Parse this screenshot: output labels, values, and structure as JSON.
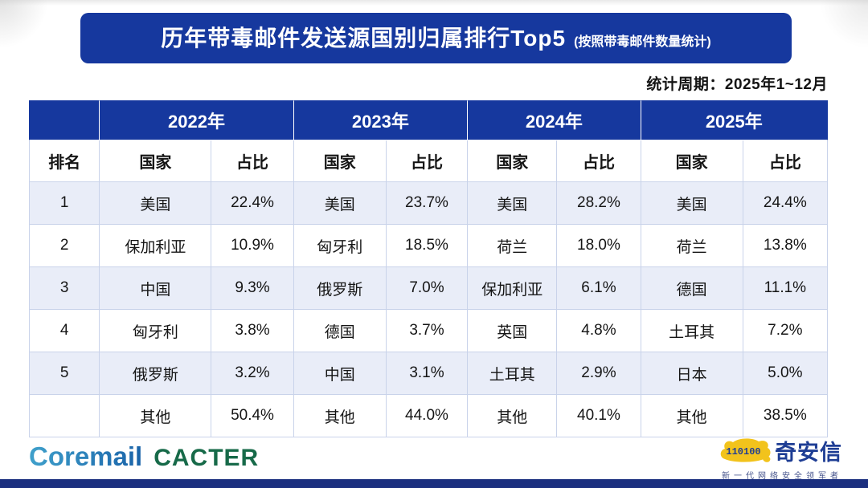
{
  "banner": {
    "title": "历年带毒邮件发送源国别归属排行Top5",
    "subtitle": "(按照带毒邮件数量统计)"
  },
  "period": "统计周期：2025年1~12月",
  "chart_data": {
    "type": "table",
    "title": "历年带毒邮件发送源国别归属排行Top5",
    "subtitle": "(按照带毒邮件数量统计)",
    "period": "统计周期：2025年1~12月",
    "rank_label": "排名",
    "country_label": "国家",
    "share_label": "占比",
    "years": [
      "2022年",
      "2023年",
      "2024年",
      "2025年"
    ],
    "rows": [
      {
        "rank": "1",
        "entries": [
          {
            "country": "美国",
            "share": "22.4%"
          },
          {
            "country": "美国",
            "share": "23.7%"
          },
          {
            "country": "美国",
            "share": "28.2%"
          },
          {
            "country": "美国",
            "share": "24.4%"
          }
        ]
      },
      {
        "rank": "2",
        "entries": [
          {
            "country": "保加利亚",
            "share": "10.9%"
          },
          {
            "country": "匈牙利",
            "share": "18.5%"
          },
          {
            "country": "荷兰",
            "share": "18.0%"
          },
          {
            "country": "荷兰",
            "share": "13.8%"
          }
        ]
      },
      {
        "rank": "3",
        "entries": [
          {
            "country": "中国",
            "share": "9.3%"
          },
          {
            "country": "俄罗斯",
            "share": "7.0%"
          },
          {
            "country": "保加利亚",
            "share": "6.1%"
          },
          {
            "country": "德国",
            "share": "11.1%"
          }
        ]
      },
      {
        "rank": "4",
        "entries": [
          {
            "country": "匈牙利",
            "share": "3.8%"
          },
          {
            "country": "德国",
            "share": "3.7%"
          },
          {
            "country": "英国",
            "share": "4.8%"
          },
          {
            "country": "土耳其",
            "share": "7.2%"
          }
        ]
      },
      {
        "rank": "5",
        "entries": [
          {
            "country": "俄罗斯",
            "share": "3.2%"
          },
          {
            "country": "中国",
            "share": "3.1%"
          },
          {
            "country": "土耳其",
            "share": "2.9%"
          },
          {
            "country": "日本",
            "share": "5.0%"
          }
        ]
      },
      {
        "rank": "",
        "entries": [
          {
            "country": "其他",
            "share": "50.4%"
          },
          {
            "country": "其他",
            "share": "44.0%"
          },
          {
            "country": "其他",
            "share": "40.1%"
          },
          {
            "country": "其他",
            "share": "38.5%"
          }
        ]
      }
    ]
  },
  "footer": {
    "coremail_text": "Coremail",
    "cacter_text": "CACTER",
    "qianxin_text": "奇安信",
    "qianxin_tagline": "新一代网络安全领军者",
    "qianxin_digits": "110100"
  },
  "colors": {
    "banner_blue": "#16389E",
    "row_tint": "#E9EDF8",
    "border": "#C9D3EA",
    "bottom_bar": "#1B2F7F",
    "coremail_blue": "#2B83BA",
    "cacter_green": "#176A49",
    "qianxin_navy": "#1E3D94",
    "tiger_gold": "#F2C31C"
  }
}
